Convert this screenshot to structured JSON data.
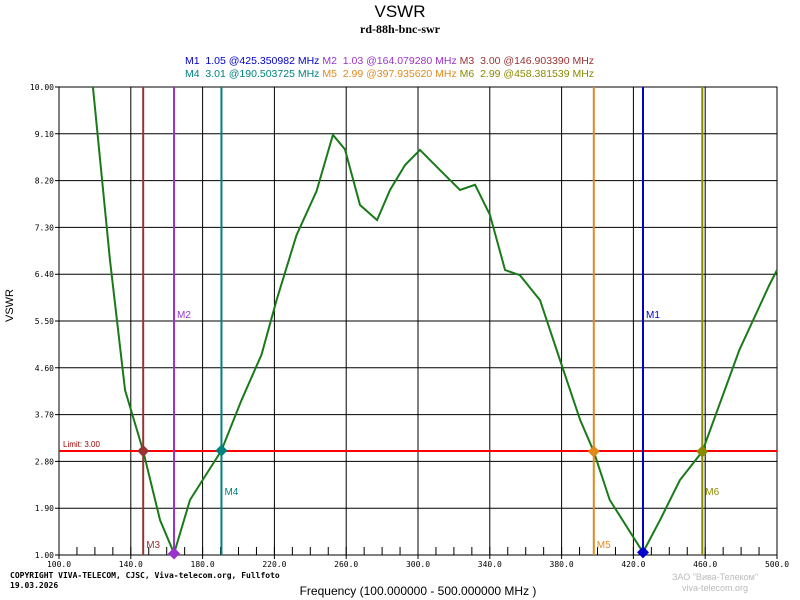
{
  "chart_data": {
    "type": "line",
    "title": "VSWR",
    "subtitle": "rd-88h-bnc-swr",
    "xlabel": "Frequency (100.000000 - 500.000000 MHz )",
    "ylabel": "VSWR",
    "xlim": [
      100,
      500
    ],
    "ylim": [
      1,
      10
    ],
    "x_ticks": [
      "100.0",
      "140.0",
      "180.0",
      "220.0",
      "260.0",
      "300.0",
      "340.0",
      "380.0",
      "420.0",
      "460.0",
      "500.0"
    ],
    "y_ticks": [
      "1.00",
      "1.90",
      "2.80",
      "3.70",
      "4.60",
      "5.50",
      "6.40",
      "7.30",
      "8.20",
      "9.10",
      "10.00"
    ],
    "grid": true,
    "series": [
      {
        "color": "#1a7a1a",
        "x": [
          118.9,
          128.4,
          136.8,
          146.9,
          156.3,
          164.1,
          173.0,
          190.5,
          201.7,
          212.8,
          221.2,
          232.3,
          243.5,
          252.6,
          259.3,
          267.7,
          277.2,
          284.4,
          292.8,
          301.1,
          312.3,
          323.4,
          331.8,
          340.1,
          348.5,
          356.8,
          368.0,
          379.1,
          390.3,
          397.9,
          406.8,
          425.35,
          434.8,
          445.9,
          458.4,
          479.0,
          495.7,
          500.0
        ],
        "y": [
          10.0,
          6.67,
          4.17,
          3.0,
          1.67,
          1.03,
          2.06,
          3.01,
          3.98,
          4.85,
          5.9,
          7.15,
          8.0,
          9.08,
          8.8,
          7.73,
          7.44,
          8.02,
          8.5,
          8.79,
          8.4,
          8.02,
          8.12,
          7.54,
          6.48,
          6.38,
          5.9,
          4.75,
          3.6,
          2.99,
          2.06,
          1.05,
          1.67,
          2.44,
          2.99,
          4.94,
          6.19,
          6.48
        ]
      }
    ],
    "limit": {
      "label": "Limit: 3.00",
      "value": 3.0,
      "color": "#ff0000"
    },
    "markers": [
      {
        "name": "M1",
        "vswr": "1.05",
        "freq": "425.350982",
        "x": 425.350982,
        "y": 1.05,
        "color": "#0000cc",
        "label_pos": "top"
      },
      {
        "name": "M2",
        "vswr": "1.03",
        "freq": "164.079280",
        "x": 164.07928,
        "y": 1.03,
        "color": "#9933cc",
        "label_pos": "top"
      },
      {
        "name": "M3",
        "vswr": "3.00",
        "freq": "146.903390",
        "x": 146.90339,
        "y": 3.0,
        "color": "#993333",
        "label_pos": "bottom"
      },
      {
        "name": "M4",
        "vswr": "3.01",
        "freq": "190.503725",
        "x": 190.503725,
        "y": 3.01,
        "color": "#008080",
        "label_pos": "middle"
      },
      {
        "name": "M5",
        "vswr": "2.99",
        "freq": "397.935620",
        "x": 397.93562,
        "y": 2.99,
        "color": "#e08a1e",
        "label_pos": "bottom"
      },
      {
        "name": "M6",
        "vswr": "2.99",
        "freq": "458.381539",
        "x": 458.381539,
        "y": 2.99,
        "color": "#8a8a00",
        "label_pos": "middle"
      }
    ],
    "unit": "MHz"
  },
  "footer": {
    "copyright": "COPYRIGHT VIVA-TELECOM, CJSC, Viva-telecom.org, Fullfoto",
    "date": "19.03.2026"
  },
  "watermark": {
    "line1": "ЗАО \"Вива-Телеком\"",
    "line2": "viva-telecom.org"
  }
}
